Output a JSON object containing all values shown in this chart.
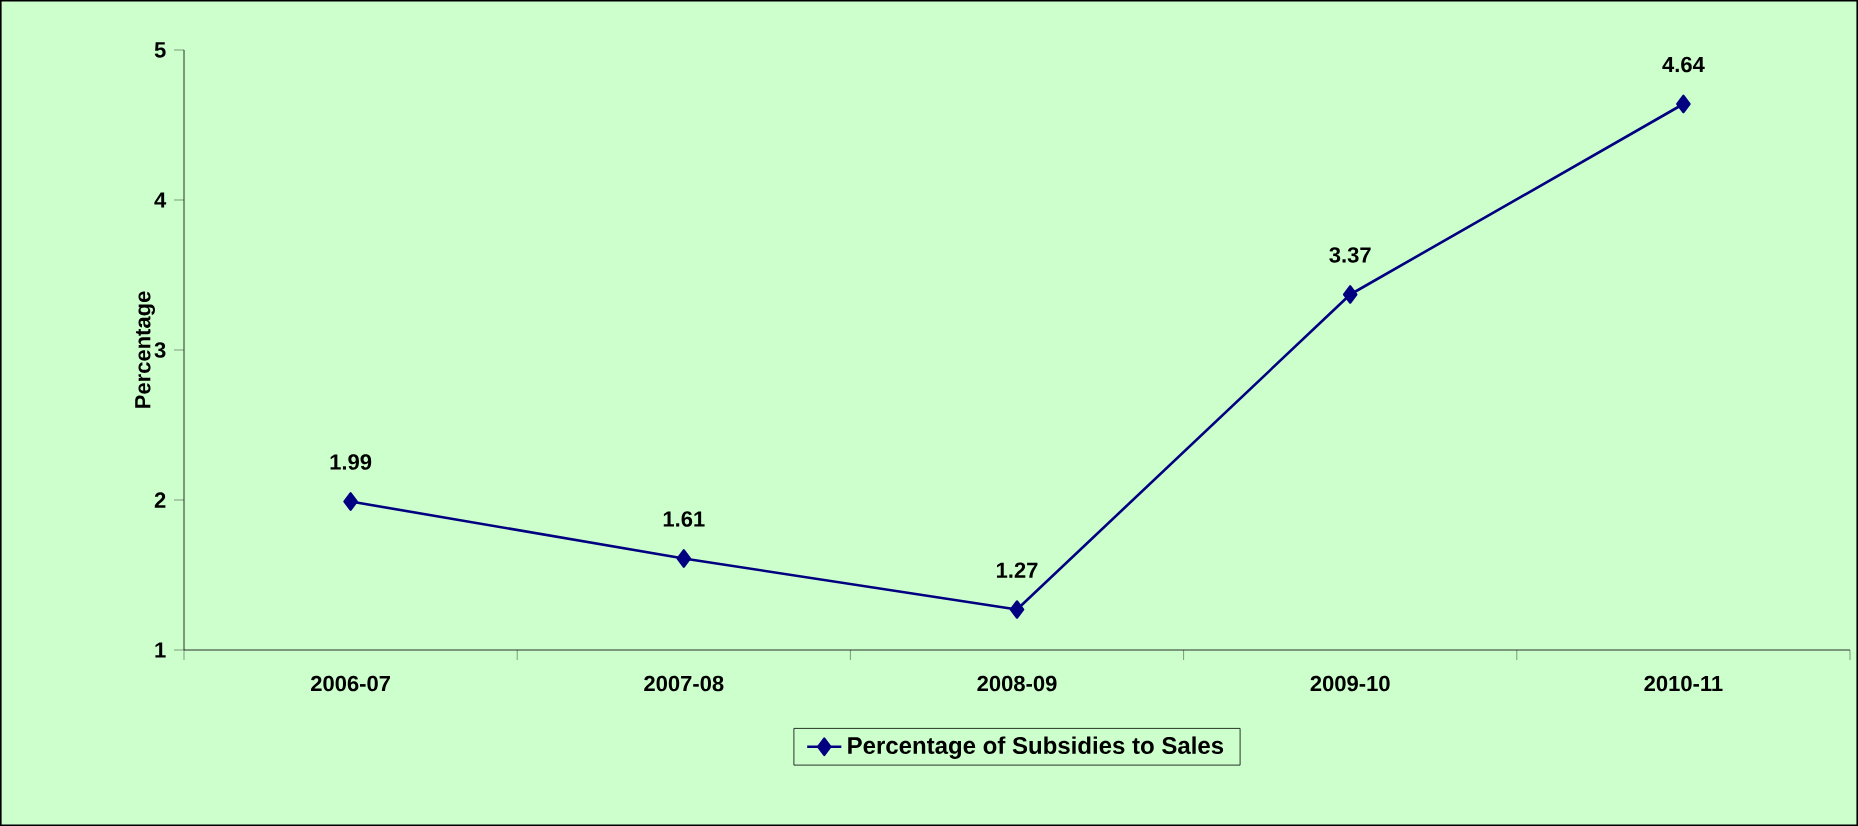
{
  "chart_data": {
    "type": "line",
    "ylabel": "Percentage",
    "categories": [
      "2006-07",
      "2007-08",
      "2008-09",
      "2009-10",
      "2010-11"
    ],
    "series": [
      {
        "name": "Percentage of Subsidies to Sales",
        "color": "#000080",
        "values": [
          1.99,
          1.61,
          1.27,
          3.37,
          4.64
        ]
      }
    ],
    "ylim": [
      1,
      5
    ],
    "yticks": [
      1,
      2,
      3,
      4,
      5
    ],
    "data_labels": true,
    "legend": "bottom",
    "marker": "diamond",
    "line_style": "solid",
    "grid": false
  }
}
